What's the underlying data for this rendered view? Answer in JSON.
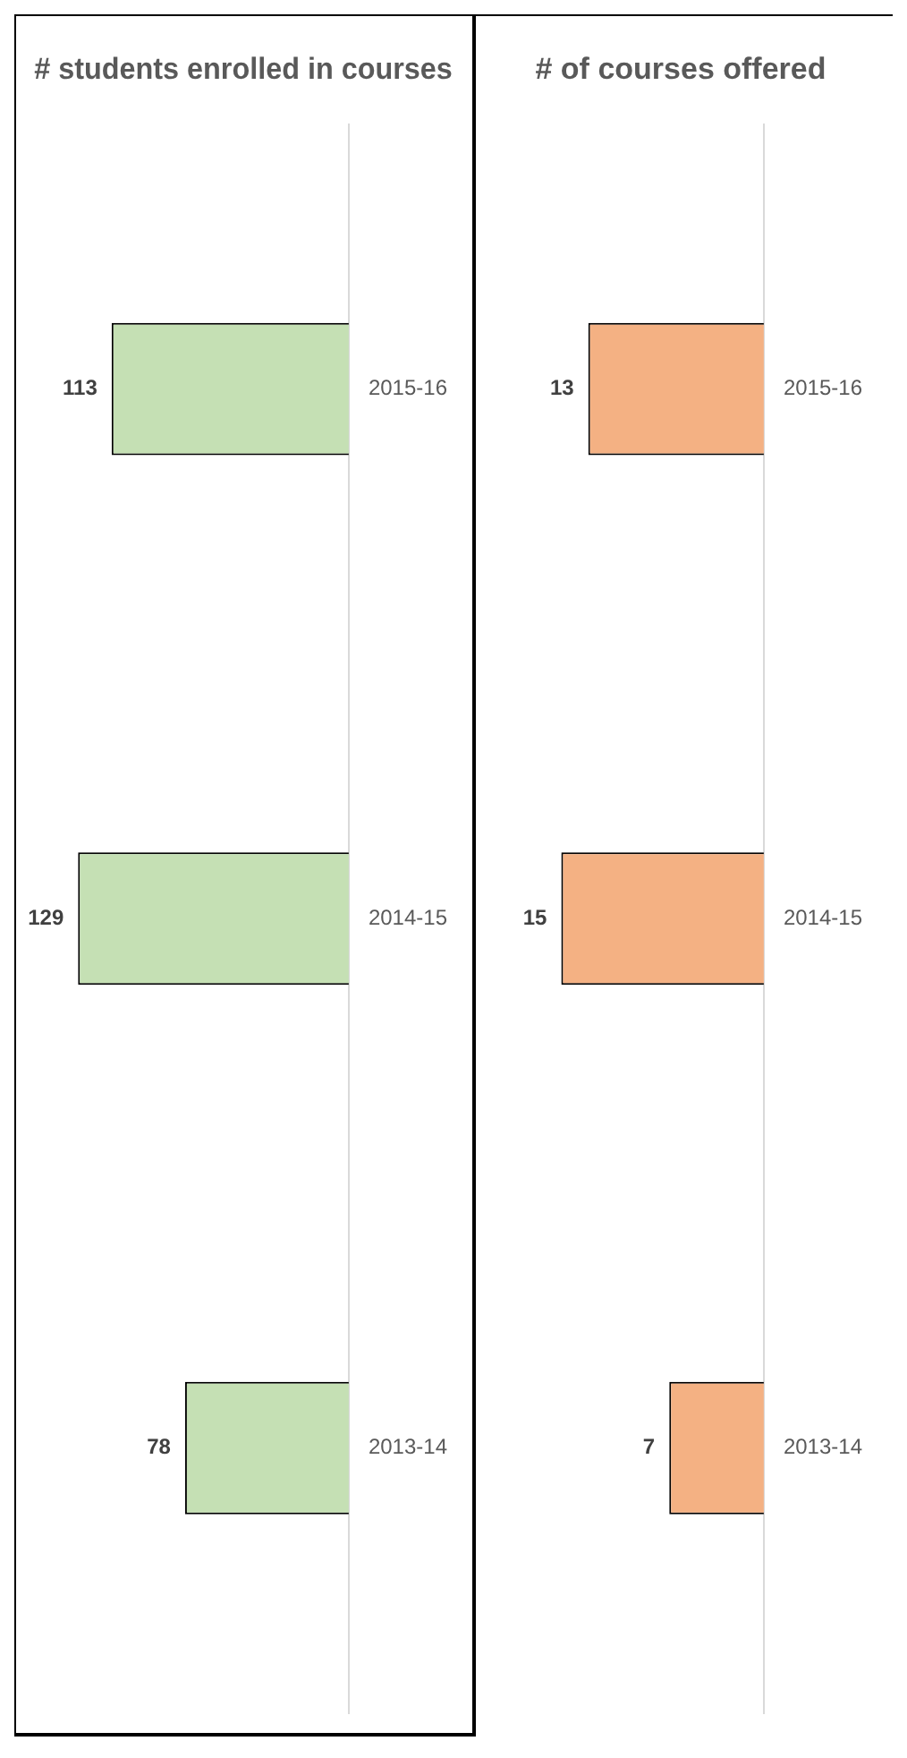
{
  "chart_data": [
    {
      "type": "bar",
      "orientation": "horizontal",
      "title": "# students enrolled in courses",
      "categories": [
        "2015-16",
        "2014-15",
        "2013-14"
      ],
      "values": [
        113,
        129,
        78
      ],
      "color": "#c5e0b4",
      "data_labels": true
    },
    {
      "type": "bar",
      "orientation": "horizontal",
      "title": "# of courses offered",
      "categories": [
        "2015-16",
        "2014-15",
        "2013-14"
      ],
      "values": [
        13,
        15,
        7
      ],
      "color": "#f4b183",
      "data_labels": true
    }
  ]
}
